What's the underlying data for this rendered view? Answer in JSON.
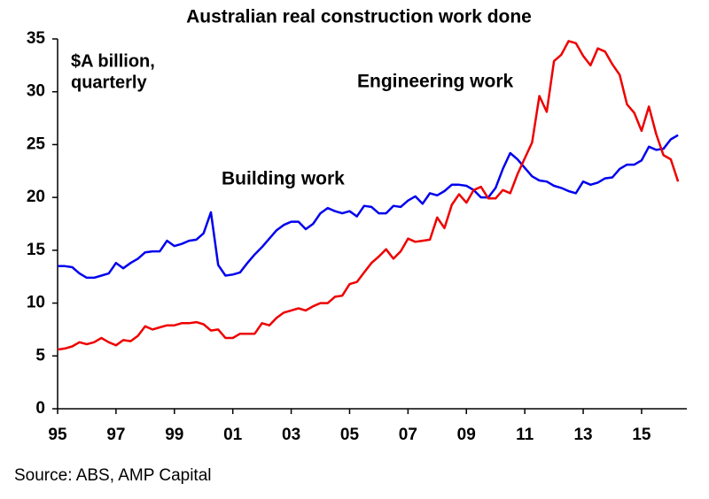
{
  "chart_data": {
    "type": "line",
    "title": "Australian real construction work done",
    "annotation_lines": [
      "$A billion,",
      "quarterly"
    ],
    "source": "Source: ABS, AMP Capital",
    "x": [
      1995,
      1995.25,
      1995.5,
      1995.75,
      1996,
      1996.25,
      1996.5,
      1996.75,
      1997,
      1997.25,
      1997.5,
      1997.75,
      1998,
      1998.25,
      1998.5,
      1998.75,
      1999,
      1999.25,
      1999.5,
      1999.75,
      2000,
      2000.25,
      2000.5,
      2000.75,
      2001,
      2001.25,
      2001.5,
      2001.75,
      2002,
      2002.25,
      2002.5,
      2002.75,
      2003,
      2003.25,
      2003.5,
      2003.75,
      2004,
      2004.25,
      2004.5,
      2004.75,
      2005,
      2005.25,
      2005.5,
      2005.75,
      2006,
      2006.25,
      2006.5,
      2006.75,
      2007,
      2007.25,
      2007.5,
      2007.75,
      2008,
      2008.25,
      2008.5,
      2008.75,
      2009,
      2009.25,
      2009.5,
      2009.75,
      2010,
      2010.25,
      2010.5,
      2010.75,
      2011,
      2011.25,
      2011.5,
      2011.75,
      2012,
      2012.25,
      2012.5,
      2012.75,
      2013,
      2013.25,
      2013.5,
      2013.75,
      2014,
      2014.25,
      2014.5,
      2014.75,
      2015,
      2015.25,
      2015.5,
      2015.75,
      2016,
      2016.25
    ],
    "series": [
      {
        "name": "Building work",
        "color": "#0000ee",
        "values": [
          13.5,
          13.5,
          13.4,
          12.8,
          12.4,
          12.4,
          12.6,
          12.8,
          13.8,
          13.3,
          13.8,
          14.2,
          14.8,
          14.9,
          14.9,
          15.9,
          15.4,
          15.6,
          15.9,
          16.0,
          16.6,
          18.6,
          13.6,
          12.6,
          12.7,
          12.9,
          13.8,
          14.6,
          15.3,
          16.1,
          16.9,
          17.4,
          17.7,
          17.7,
          17.0,
          17.5,
          18.5,
          19.0,
          18.7,
          18.5,
          18.7,
          18.2,
          19.2,
          19.1,
          18.5,
          18.5,
          19.2,
          19.1,
          19.7,
          20.1,
          19.4,
          20.4,
          20.2,
          20.6,
          21.2,
          21.2,
          21.1,
          20.7,
          20.0,
          20.0,
          20.9,
          22.7,
          24.2,
          23.6,
          22.8,
          22.0,
          21.6,
          21.5,
          21.1,
          20.9,
          20.6,
          20.4,
          21.5,
          21.2,
          21.4,
          21.8,
          21.9,
          22.7,
          23.1,
          23.1,
          23.5,
          24.8,
          24.5,
          24.6,
          25.5,
          25.9
        ]
      },
      {
        "name": "Engineering work",
        "color": "#ee0000",
        "values": [
          5.6,
          5.7,
          5.9,
          6.3,
          6.1,
          6.3,
          6.7,
          6.3,
          6.0,
          6.5,
          6.4,
          6.9,
          7.8,
          7.5,
          7.7,
          7.9,
          7.9,
          8.1,
          8.1,
          8.2,
          8.0,
          7.4,
          7.5,
          6.7,
          6.7,
          7.1,
          7.1,
          7.1,
          8.1,
          7.9,
          8.6,
          9.1,
          9.3,
          9.5,
          9.3,
          9.7,
          10.0,
          10.0,
          10.6,
          10.7,
          11.8,
          12.0,
          12.9,
          13.8,
          14.4,
          15.1,
          14.2,
          14.9,
          16.1,
          15.8,
          15.9,
          16.0,
          18.1,
          17.1,
          19.3,
          20.3,
          19.5,
          20.7,
          21.0,
          19.9,
          19.9,
          20.7,
          20.4,
          22.2,
          23.7,
          25.2,
          29.6,
          28.1,
          32.9,
          33.5,
          34.8,
          34.6,
          33.4,
          32.5,
          34.1,
          33.8,
          32.6,
          31.6,
          28.8,
          28.0,
          26.3,
          28.6,
          26.0,
          24.0,
          23.6,
          21.5
        ]
      }
    ],
    "xlim": [
      1995,
      2016.55
    ],
    "xticks": [
      {
        "value": 1995,
        "label": "95"
      },
      {
        "value": 1997,
        "label": "97"
      },
      {
        "value": 1999,
        "label": "99"
      },
      {
        "value": 2001,
        "label": "01"
      },
      {
        "value": 2003,
        "label": "03"
      },
      {
        "value": 2005,
        "label": "05"
      },
      {
        "value": 2007,
        "label": "07"
      },
      {
        "value": 2009,
        "label": "09"
      },
      {
        "value": 2011,
        "label": "11"
      },
      {
        "value": 2013,
        "label": "13"
      },
      {
        "value": 2015,
        "label": "15"
      }
    ],
    "ylim": [
      0,
      35
    ],
    "yticks": [
      0,
      5,
      10,
      15,
      20,
      25,
      30,
      35
    ],
    "grid": false
  }
}
